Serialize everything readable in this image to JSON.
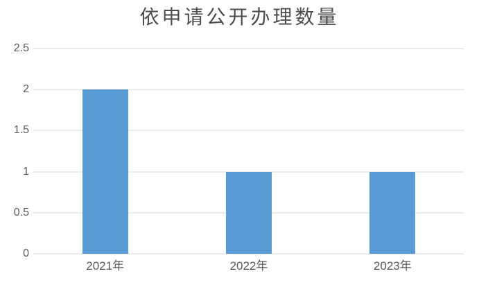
{
  "chart_data": {
    "type": "bar",
    "title": "依申请公开办理数量",
    "categories": [
      "2021年",
      "2022年",
      "2023年"
    ],
    "values": [
      2,
      1,
      1
    ],
    "xlabel": "",
    "ylabel": "",
    "ylim": [
      0,
      2.5
    ],
    "yticks": [
      0,
      0.5,
      1,
      1.5,
      2,
      2.5
    ],
    "ytick_labels": [
      "0",
      "0.5",
      "1",
      "1.5",
      "2",
      "2.5"
    ],
    "grid": true,
    "legend": false,
    "colors": {
      "bar": "#5B9BD5",
      "gridline": "#D9D9D9",
      "axis_line": "#D9D9D9",
      "axis_text": "#595959",
      "title_text": "#4D4D4D",
      "background": "#FFFFFF"
    }
  }
}
